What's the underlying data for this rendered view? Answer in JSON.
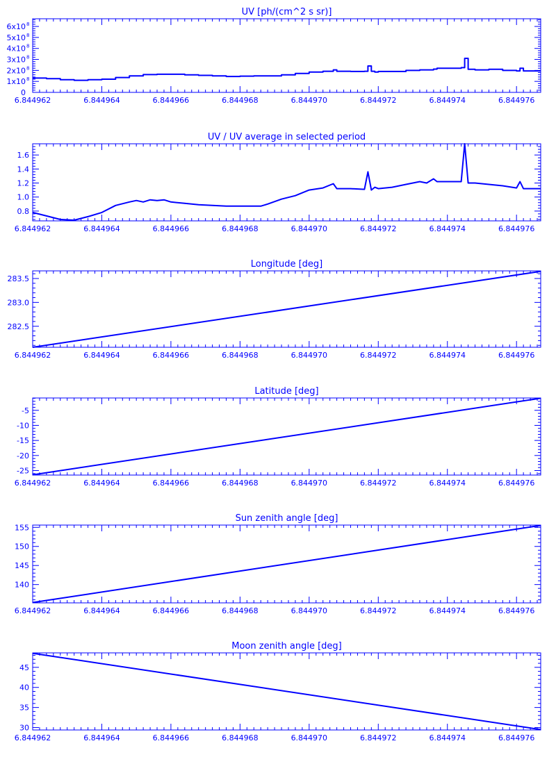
{
  "page": {
    "color": "#0000ff",
    "background": "#ffffff"
  },
  "chart_data": [
    {
      "type": "line",
      "title": "UV [ph/(cm^2 s sr)]",
      "xlim": [
        6.844962,
        6.8449767
      ],
      "ylim": [
        0,
        6.7
      ],
      "yticks": [
        {
          "v": 0,
          "mant": "0",
          "exp": ""
        },
        {
          "v": 1,
          "mant": "1x10",
          "exp": "8"
        },
        {
          "v": 2,
          "mant": "2x10",
          "exp": "8"
        },
        {
          "v": 3,
          "mant": "3x10",
          "exp": "8"
        },
        {
          "v": 4,
          "mant": "4x10",
          "exp": "8"
        },
        {
          "v": 5,
          "mant": "5x10",
          "exp": "8"
        },
        {
          "v": 6,
          "mant": "6x10",
          "exp": "8"
        }
      ],
      "step": true,
      "series": [
        {
          "x": [
            6.844962,
            6.8449624,
            6.8449628,
            6.8449632,
            6.8449636,
            6.844964,
            6.8449644,
            6.8449648,
            6.8449652,
            6.8449656,
            6.844966,
            6.8449664,
            6.8449668,
            6.8449672,
            6.8449676,
            6.844968,
            6.8449684,
            6.8449688,
            6.8449692,
            6.8449696,
            6.84497,
            6.8449704,
            6.8449707,
            6.8449708,
            6.8449712,
            6.8449716,
            6.8449717,
            6.8449718,
            6.8449719,
            6.844972,
            6.8449724,
            6.8449728,
            6.8449732,
            6.8449736,
            6.8449737,
            6.844974,
            6.8449744,
            6.8449745,
            6.8449746,
            6.8449748,
            6.8449752,
            6.8449756,
            6.844976,
            6.8449761,
            6.8449762,
            6.8449764,
            6.8449767
          ],
          "y": [
            1.3,
            1.25,
            1.15,
            1.1,
            1.15,
            1.2,
            1.35,
            1.5,
            1.62,
            1.65,
            1.65,
            1.6,
            1.55,
            1.5,
            1.45,
            1.48,
            1.5,
            1.5,
            1.6,
            1.72,
            1.85,
            1.92,
            2.05,
            1.92,
            1.9,
            1.92,
            2.4,
            1.92,
            1.85,
            1.9,
            1.9,
            2.0,
            2.05,
            2.12,
            2.2,
            2.2,
            2.25,
            3.1,
            2.1,
            2.05,
            2.1,
            2.0,
            1.95,
            2.2,
            1.95,
            1.95,
            1.95
          ]
        }
      ]
    },
    {
      "type": "line",
      "title": "UV / UV average in selected period",
      "xlim": [
        6.844962,
        6.8449767
      ],
      "ylim": [
        0.66,
        1.76
      ],
      "yticks": [
        {
          "v": 0.8,
          "label": "0.8"
        },
        {
          "v": 1.0,
          "label": "1.0"
        },
        {
          "v": 1.2,
          "label": "1.2"
        },
        {
          "v": 1.4,
          "label": "1.4"
        },
        {
          "v": 1.6,
          "label": "1.6"
        }
      ],
      "series": [
        {
          "x": [
            6.844962,
            6.8449624,
            6.8449628,
            6.8449632,
            6.8449636,
            6.844964,
            6.8449644,
            6.8449648,
            6.844965,
            6.8449652,
            6.8449654,
            6.8449656,
            6.8449658,
            6.844966,
            6.8449664,
            6.8449668,
            6.8449672,
            6.8449676,
            6.844968,
            6.8449684,
            6.8449686,
            6.8449688,
            6.8449692,
            6.8449696,
            6.84497,
            6.8449704,
            6.8449707,
            6.8449708,
            6.8449712,
            6.8449716,
            6.8449717,
            6.8449718,
            6.8449719,
            6.844972,
            6.8449724,
            6.8449728,
            6.8449732,
            6.8449734,
            6.8449736,
            6.8449737,
            6.844974,
            6.8449744,
            6.8449745,
            6.8449746,
            6.8449748,
            6.8449752,
            6.8449756,
            6.844976,
            6.8449761,
            6.8449762,
            6.8449764,
            6.8449767
          ],
          "y": [
            0.78,
            0.73,
            0.68,
            0.67,
            0.72,
            0.78,
            0.88,
            0.93,
            0.95,
            0.93,
            0.96,
            0.95,
            0.96,
            0.93,
            0.91,
            0.89,
            0.88,
            0.87,
            0.87,
            0.87,
            0.87,
            0.9,
            0.97,
            1.02,
            1.1,
            1.13,
            1.19,
            1.12,
            1.12,
            1.11,
            1.36,
            1.1,
            1.14,
            1.12,
            1.14,
            1.18,
            1.22,
            1.2,
            1.26,
            1.22,
            1.22,
            1.22,
            1.76,
            1.2,
            1.2,
            1.18,
            1.16,
            1.13,
            1.22,
            1.12,
            1.12,
            1.12
          ]
        }
      ]
    },
    {
      "type": "line",
      "title": "Longitude [deg]",
      "xlim": [
        6.844962,
        6.8449767
      ],
      "ylim": [
        282.06,
        283.66
      ],
      "yticks": [
        {
          "v": 282.5,
          "label": "282.5"
        },
        {
          "v": 283.0,
          "label": "283.0"
        },
        {
          "v": 283.5,
          "label": "283.5"
        }
      ],
      "series": [
        {
          "x": [
            6.844962,
            6.8449767
          ],
          "y": [
            282.06,
            283.65
          ]
        }
      ]
    },
    {
      "type": "line",
      "title": "Latitude [deg]",
      "xlim": [
        6.844962,
        6.8449767
      ],
      "ylim": [
        -26.5,
        -0.9
      ],
      "yticks": [
        {
          "v": -25,
          "label": "-25"
        },
        {
          "v": -20,
          "label": "-20"
        },
        {
          "v": -15,
          "label": "-15"
        },
        {
          "v": -10,
          "label": "-10"
        },
        {
          "v": -5,
          "label": "-5"
        }
      ],
      "series": [
        {
          "x": [
            6.844962,
            6.8449767
          ],
          "y": [
            -26.4,
            -1.0
          ]
        }
      ]
    },
    {
      "type": "line",
      "title": "Sun zenith angle [deg]",
      "xlim": [
        6.844962,
        6.8449767
      ],
      "ylim": [
        135.2,
        155.6
      ],
      "yticks": [
        {
          "v": 140,
          "label": "140"
        },
        {
          "v": 145,
          "label": "145"
        },
        {
          "v": 150,
          "label": "150"
        },
        {
          "v": 155,
          "label": "155"
        }
      ],
      "series": [
        {
          "x": [
            6.844962,
            6.8449767
          ],
          "y": [
            135.3,
            155.5
          ]
        }
      ]
    },
    {
      "type": "line",
      "title": "Moon zenith angle [deg]",
      "xlim": [
        6.844962,
        6.8449767
      ],
      "ylim": [
        29.4,
        48.6
      ],
      "yticks": [
        {
          "v": 30,
          "label": "30"
        },
        {
          "v": 35,
          "label": "35"
        },
        {
          "v": 40,
          "label": "40"
        },
        {
          "v": 45,
          "label": "45"
        }
      ],
      "series": [
        {
          "x": [
            6.844962,
            6.8449767
          ],
          "y": [
            48.5,
            29.5
          ]
        }
      ]
    }
  ],
  "xticks": [
    {
      "v": 6.844962,
      "label": "6.844962"
    },
    {
      "v": 6.844964,
      "label": "6.844964"
    },
    {
      "v": 6.844966,
      "label": "6.844966"
    },
    {
      "v": 6.844968,
      "label": "6.844968"
    },
    {
      "v": 6.84497,
      "label": "6.844970"
    },
    {
      "v": 6.844972,
      "label": "6.844972"
    },
    {
      "v": 6.844974,
      "label": "6.844974"
    },
    {
      "v": 6.844976,
      "label": "6.844976"
    }
  ]
}
